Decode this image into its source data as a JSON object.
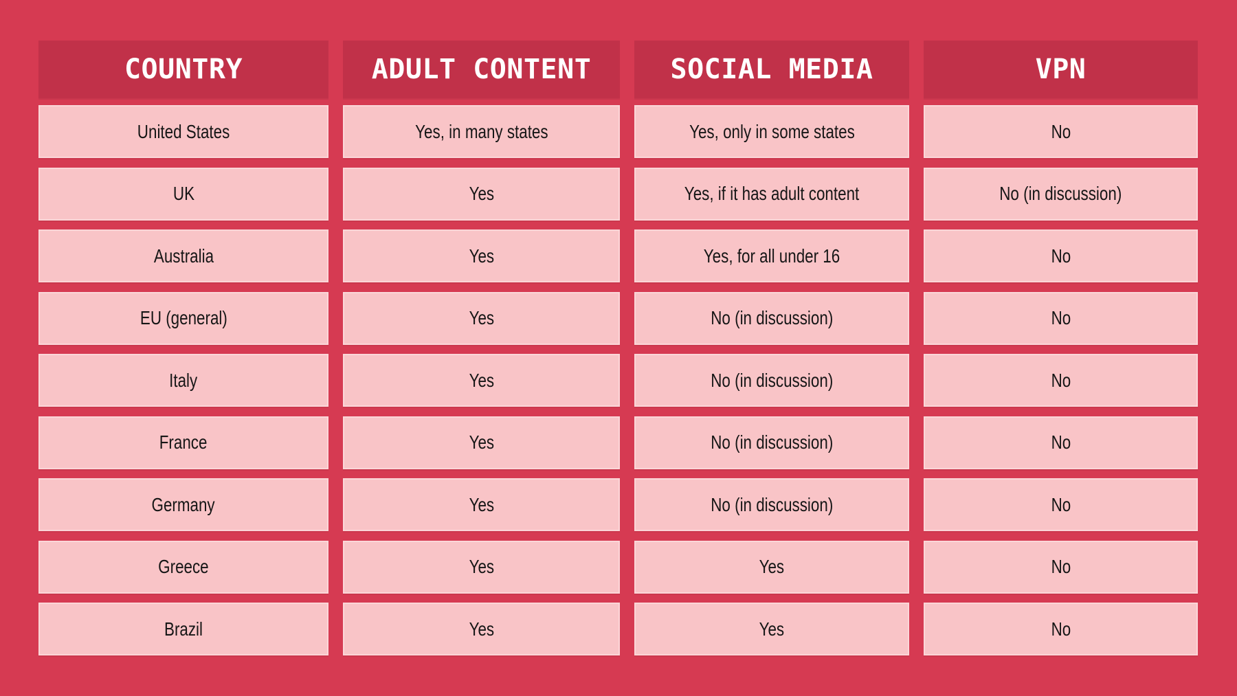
{
  "colors": {
    "page_background": "#d63a52",
    "header_background": "#c13149",
    "header_text": "#ffffff",
    "cell_background": "#f9c4c7",
    "cell_border_highlight": "#fbd6d8",
    "cell_text": "#161616"
  },
  "chart_data": {
    "type": "table",
    "title": "",
    "columns": [
      "COUNTRY",
      "ADULT CONTENT",
      "SOCIAL MEDIA",
      "VPN"
    ],
    "column_keys": [
      "country",
      "adult-content",
      "social-media",
      "vpn"
    ],
    "rows": [
      [
        "United States",
        "Yes, in many states",
        "Yes, only in some states",
        "No"
      ],
      [
        "UK",
        "Yes",
        "Yes, if it has adult content",
        "No (in discussion)"
      ],
      [
        "Australia",
        "Yes",
        "Yes, for all under 16",
        "No"
      ],
      [
        "EU (general)",
        "Yes",
        "No (in discussion)",
        "No"
      ],
      [
        "Italy",
        "Yes",
        "No (in discussion)",
        "No"
      ],
      [
        "France",
        "Yes",
        "No (in discussion)",
        "No"
      ],
      [
        "Germany",
        "Yes",
        "No (in discussion)",
        "No"
      ],
      [
        "Greece",
        "Yes",
        "Yes",
        "No"
      ],
      [
        "Brazil",
        "Yes",
        "Yes",
        "No"
      ]
    ],
    "layout": {
      "grid": "off",
      "legend": "none",
      "header_position": "top"
    }
  }
}
